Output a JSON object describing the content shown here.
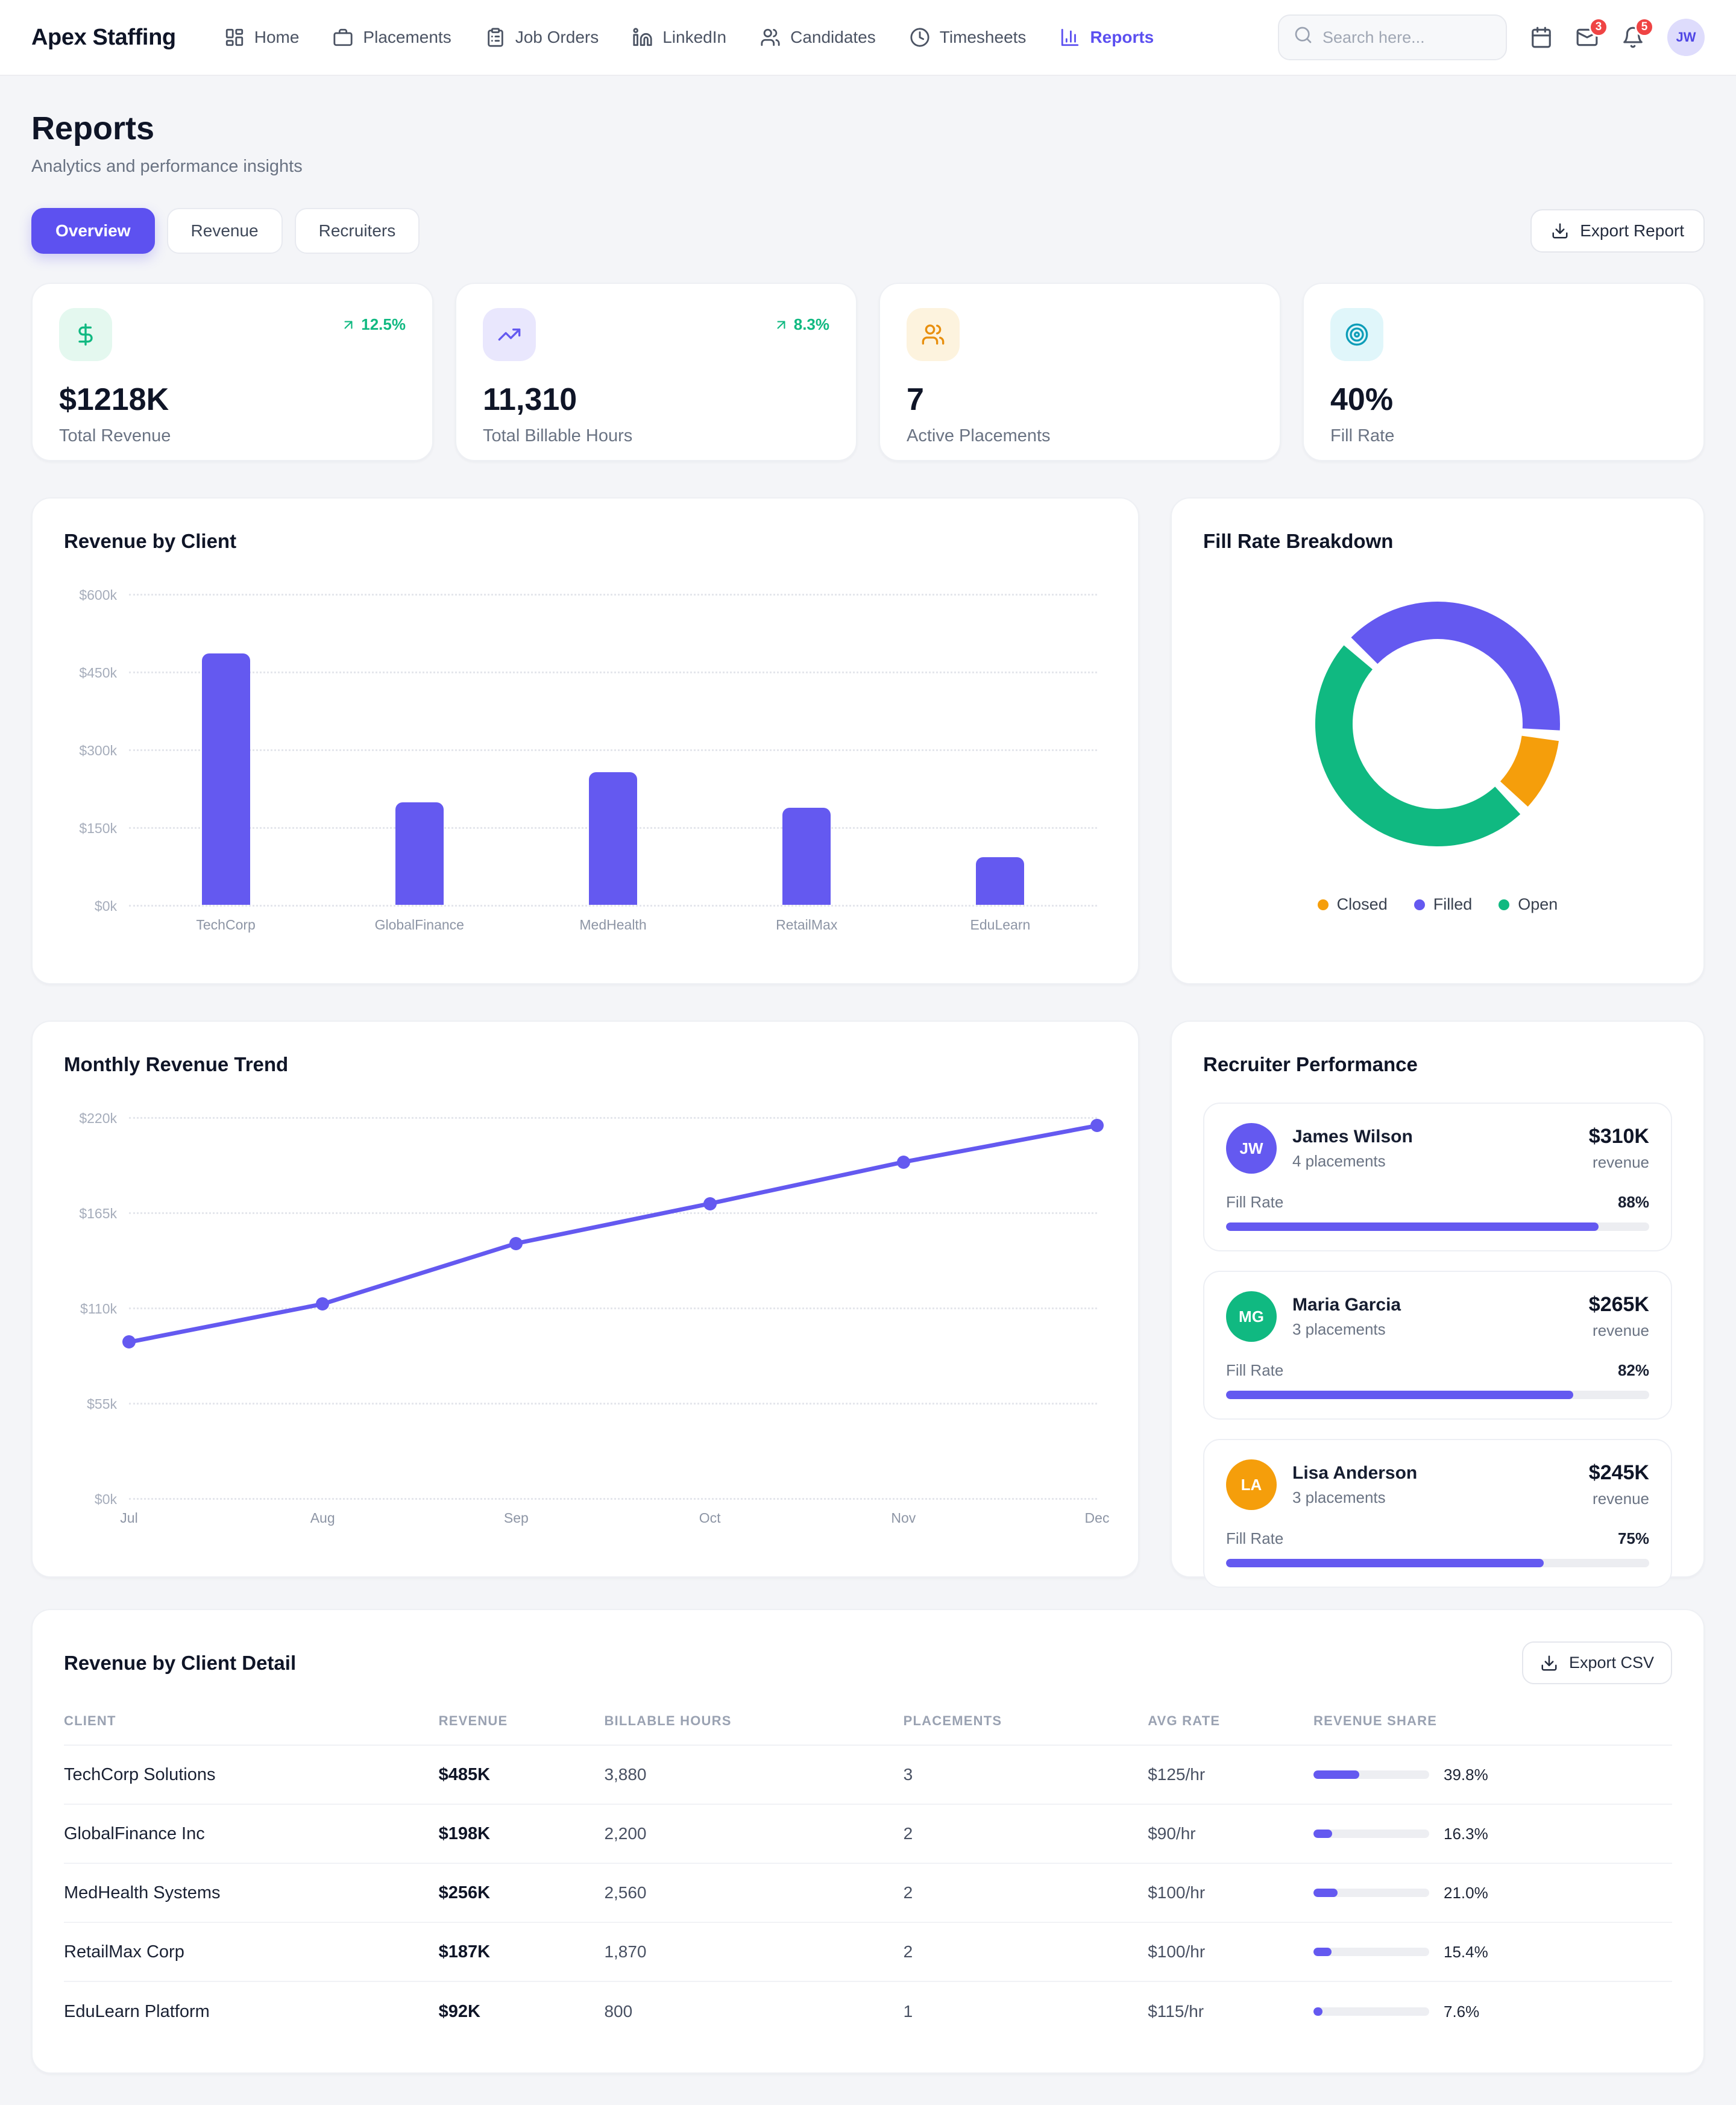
{
  "colors": {
    "accent": "#6459f0",
    "green": "#10b981",
    "orange": "#f59e0b",
    "orange_deep": "#e88f0e",
    "cyan": "#0d9db8",
    "red": "#ef4444"
  },
  "header": {
    "brand": "Apex Staffing",
    "nav_items": [
      {
        "label": "Home",
        "icon": "home-icon",
        "active": false
      },
      {
        "label": "Placements",
        "icon": "briefcase-icon",
        "active": false
      },
      {
        "label": "Job Orders",
        "icon": "clipboard-icon",
        "active": false
      },
      {
        "label": "LinkedIn",
        "icon": "linkedin-icon",
        "active": false
      },
      {
        "label": "Candidates",
        "icon": "candidates-icon",
        "active": false
      },
      {
        "label": "Timesheets",
        "icon": "clock-icon",
        "active": false
      },
      {
        "label": "Reports",
        "icon": "bar-chart-icon",
        "active": true
      }
    ],
    "search_placeholder": "Search here...",
    "mail_badge": "3",
    "bell_badge": "5",
    "avatar_initials": "JW"
  },
  "page": {
    "title": "Reports",
    "subtitle": "Analytics and performance insights"
  },
  "tabs": [
    {
      "label": "Overview",
      "active": true
    },
    {
      "label": "Revenue",
      "active": false
    },
    {
      "label": "Recruiters",
      "active": false
    }
  ],
  "export_report": {
    "label": "Export Report"
  },
  "kpis": [
    {
      "icon": "dollar-icon",
      "icon_color": "#10b981",
      "icon_bg": "#e4f8ef",
      "trend": "12.5%",
      "value": "$1218K",
      "label": "Total Revenue"
    },
    {
      "icon": "trending-up-icon",
      "icon_color": "#6459f0",
      "icon_bg": "#e9e7fd",
      "trend": "8.3%",
      "value": "11,310",
      "label": "Total Billable Hours"
    },
    {
      "icon": "users-icon",
      "icon_color": "#e88f0e",
      "icon_bg": "#fdf3de",
      "trend": null,
      "value": "7",
      "label": "Active Placements"
    },
    {
      "icon": "target-icon",
      "icon_color": "#0d9db8",
      "icon_bg": "#e0f6fa",
      "trend": null,
      "value": "40%",
      "label": "Fill Rate"
    }
  ],
  "chart_data": [
    {
      "id": "revenue_by_client",
      "type": "bar",
      "title": "Revenue by Client",
      "categories": [
        "TechCorp",
        "GlobalFinance",
        "MedHealth",
        "RetailMax",
        "EduLearn"
      ],
      "values": [
        485,
        198,
        256,
        187,
        92
      ],
      "ylabel": "Revenue ($k)",
      "yticks": [
        600,
        450,
        300,
        150,
        0
      ],
      "ylim": [
        0,
        600
      ],
      "tick_prefix": "$",
      "tick_suffix": "k",
      "bar_color": "#6459f0",
      "grid": "dotted horizontal"
    },
    {
      "id": "fill_rate_breakdown",
      "type": "pie",
      "title": "Fill Rate Breakdown",
      "segments": [
        {
          "label": "Closed",
          "value": 10,
          "color": "#f59e0b"
        },
        {
          "label": "Filled",
          "value": 40,
          "color": "#6459f0"
        },
        {
          "label": "Open",
          "value": 50,
          "color": "#10b981"
        }
      ],
      "donut": true,
      "legend_position": "bottom",
      "start_angle": -45,
      "gap_deg": 5,
      "draw_order": [
        1,
        0,
        2
      ]
    },
    {
      "id": "monthly_revenue_trend",
      "type": "line",
      "title": "Monthly Revenue Trend",
      "x": [
        "Jul",
        "Aug",
        "Sep",
        "Oct",
        "Nov",
        "Dec"
      ],
      "values": [
        90,
        112,
        147,
        170,
        194,
        215
      ],
      "ylabel": "Revenue ($k)",
      "yticks": [
        220,
        165,
        110,
        55,
        0
      ],
      "ylim": [
        0,
        220
      ],
      "tick_prefix": "$",
      "tick_suffix": "k",
      "line_color": "#6459f0",
      "markers": true,
      "grid": "dotted horizontal"
    }
  ],
  "recruiters": {
    "title": "Recruiter Performance",
    "fill_rate_label": "Fill Rate",
    "revenue_caption": "revenue",
    "items": [
      {
        "initials": "JW",
        "avatar_color": "#6459f0",
        "name": "James Wilson",
        "placements": "4 placements",
        "revenue": "$310K",
        "fill_rate": 88,
        "fill_rate_label": "88%"
      },
      {
        "initials": "MG",
        "avatar_color": "#10b981",
        "name": "Maria Garcia",
        "placements": "3 placements",
        "revenue": "$265K",
        "fill_rate": 82,
        "fill_rate_label": "82%"
      },
      {
        "initials": "LA",
        "avatar_color": "#f59e0b",
        "name": "Lisa Anderson",
        "placements": "3 placements",
        "revenue": "$245K",
        "fill_rate": 75,
        "fill_rate_label": "75%"
      }
    ]
  },
  "table": {
    "title": "Revenue by Client Detail",
    "export_label": "Export CSV",
    "columns": [
      "Client",
      "Revenue",
      "Billable Hours",
      "Placements",
      "Avg Rate",
      "Revenue Share"
    ],
    "rows": [
      {
        "client": "TechCorp Solutions",
        "revenue": "$485K",
        "hours": "3,880",
        "placements": "3",
        "rate": "$125/hr",
        "share": 39.8,
        "share_label": "39.8%"
      },
      {
        "client": "GlobalFinance Inc",
        "revenue": "$198K",
        "hours": "2,200",
        "placements": "2",
        "rate": "$90/hr",
        "share": 16.3,
        "share_label": "16.3%"
      },
      {
        "client": "MedHealth Systems",
        "revenue": "$256K",
        "hours": "2,560",
        "placements": "2",
        "rate": "$100/hr",
        "share": 21.0,
        "share_label": "21.0%"
      },
      {
        "client": "RetailMax Corp",
        "revenue": "$187K",
        "hours": "1,870",
        "placements": "2",
        "rate": "$100/hr",
        "share": 15.4,
        "share_label": "15.4%"
      },
      {
        "client": "EduLearn Platform",
        "revenue": "$92K",
        "hours": "800",
        "placements": "1",
        "rate": "$115/hr",
        "share": 7.6,
        "share_label": "7.6%"
      }
    ]
  }
}
